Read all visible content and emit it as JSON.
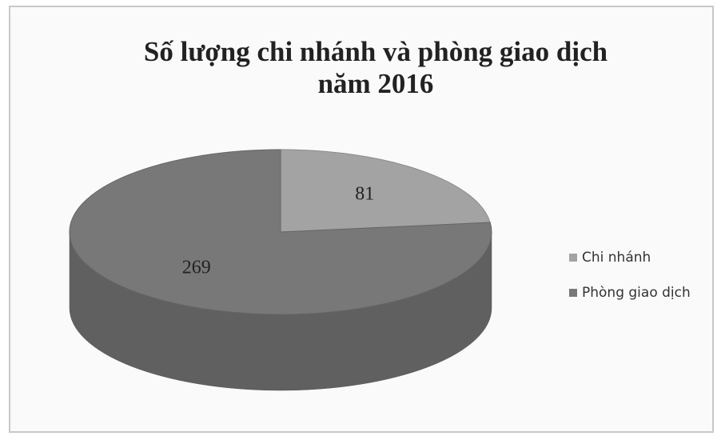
{
  "chart_data": {
    "type": "pie",
    "title": [
      "Số lượng chi nhánh và phòng giao dịch",
      "năm 2016"
    ],
    "categories": [
      "Chi nhánh",
      "Phòng giao dịch"
    ],
    "values": [
      81,
      269
    ],
    "colors": [
      "#a3a3a3",
      "#787878"
    ],
    "legend": "right"
  }
}
